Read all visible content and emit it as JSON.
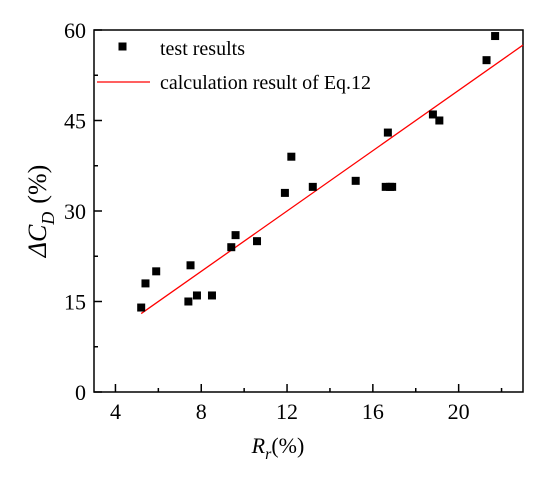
{
  "chart_data": {
    "type": "scatter",
    "title": "",
    "xlabel_main": "R",
    "xlabel_sub": "r",
    "xlabel_unit": "(%)",
    "ylabel_main": "ΔC",
    "ylabel_sub": "D",
    "ylabel_unit": "(%)",
    "xlim": [
      3,
      23
    ],
    "ylim": [
      0,
      60
    ],
    "xticks": [
      4,
      8,
      12,
      16,
      20
    ],
    "yticks": [
      0,
      15,
      30,
      45,
      60
    ],
    "grid": false,
    "legend_position": "top-left",
    "series": [
      {
        "name": "test results",
        "kind": "scatter",
        "color": "#000000",
        "marker": "square",
        "x": [
          5.2,
          5.4,
          5.9,
          7.4,
          7.5,
          7.8,
          8.5,
          9.4,
          9.6,
          10.6,
          11.9,
          12.2,
          13.2,
          15.2,
          16.6,
          16.7,
          16.8,
          16.9,
          18.8,
          19.1,
          21.3,
          21.7
        ],
        "y": [
          14,
          18,
          20,
          15,
          21,
          16,
          16,
          24,
          26,
          25,
          33,
          39,
          34,
          35,
          34,
          43,
          34,
          34,
          46,
          45,
          55,
          59
        ]
      },
      {
        "name": "calculation result of Eq.12",
        "kind": "line",
        "color": "#ff0000",
        "x": [
          5.2,
          23.0
        ],
        "y": [
          13.0,
          57.5
        ]
      }
    ]
  }
}
